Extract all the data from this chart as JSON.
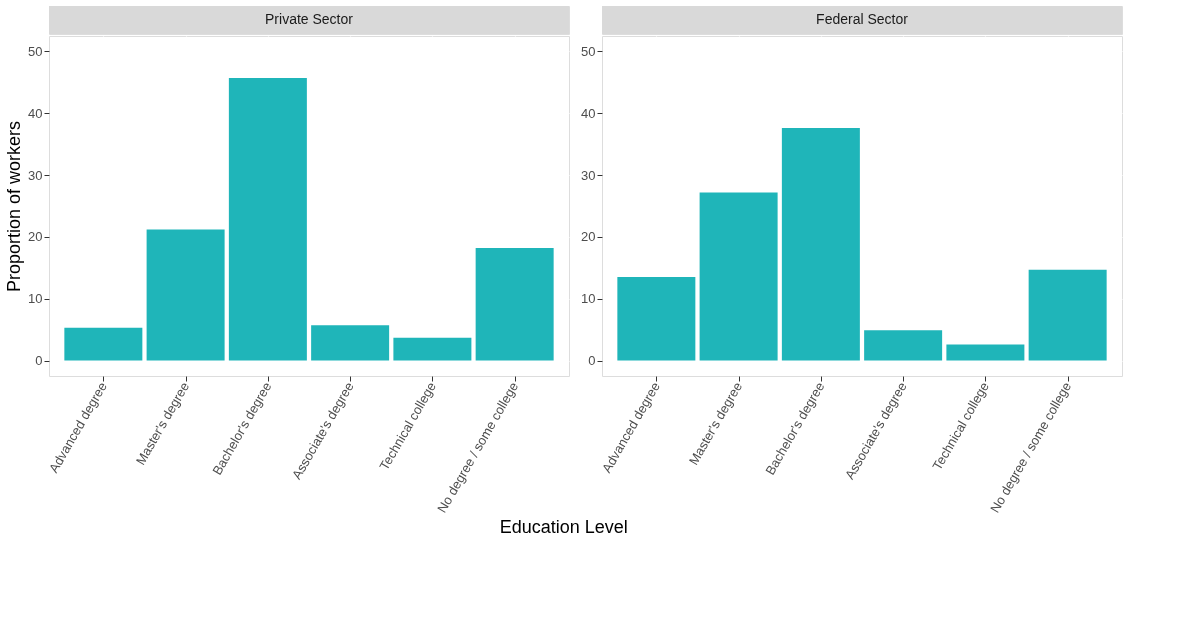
{
  "chart_data": [
    {
      "type": "bar",
      "title": "Private Sector",
      "xlabel": "Education Level",
      "ylabel": "Proportion of workers",
      "categories": [
        "Advanced degree",
        "Master's degree",
        "Bachelor's degree",
        "Associate's degree",
        "Technical college",
        "No degree / some college"
      ],
      "values": [
        5.3,
        21.2,
        45.7,
        5.7,
        3.7,
        18.2
      ],
      "color": "#1fb5b9",
      "ylim": [
        -2.5,
        52.5
      ],
      "yticks": [
        0,
        10,
        20,
        30,
        40,
        50
      ],
      "grid": true
    },
    {
      "type": "bar",
      "title": "Federal Sector",
      "categories": [
        "Advanced degree",
        "Master's degree",
        "Bachelor's degree",
        "Associate's degree",
        "Technical college",
        "No degree / some college"
      ],
      "values": [
        13.5,
        27.2,
        37.6,
        4.9,
        2.6,
        14.7
      ],
      "color": "#1fb5b9",
      "ylim": [
        -2.5,
        52.5
      ],
      "yticks": [
        0,
        10,
        20,
        30,
        40,
        50
      ],
      "grid": true
    }
  ]
}
